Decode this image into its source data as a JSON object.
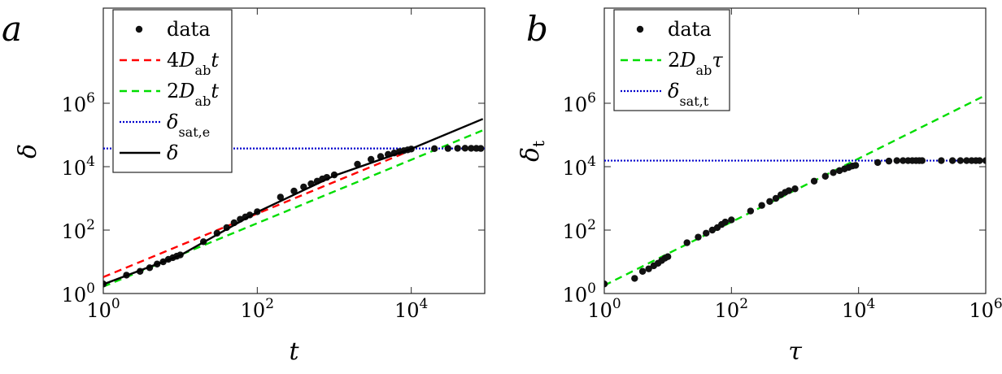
{
  "chart_data": [
    {
      "type": "line",
      "panel_label": "a",
      "title": "",
      "xlabel": "t",
      "ylabel": "δ",
      "xscale": "log",
      "yscale": "log",
      "xlim": [
        1,
        90000
      ],
      "ylim": [
        1,
        1000000000
      ],
      "x_ticks": [
        1,
        100,
        10000
      ],
      "y_ticks": [
        1,
        100,
        10000,
        1000000
      ],
      "x_tick_labels": [
        "10^0",
        "10^2",
        "10^4"
      ],
      "y_tick_labels": [
        "10^0",
        "10^2",
        "10^4",
        "10^6"
      ],
      "legend_location": "top-left",
      "legend": [
        {
          "label": "data",
          "style": "markers",
          "color": "#000000"
        },
        {
          "label": "4D_ab t",
          "style": "dashed",
          "color": "#ff0000"
        },
        {
          "label": "2D_ab t",
          "style": "dashed",
          "color": "#00dd00"
        },
        {
          "label": "δ_sat,e",
          "style": "dotted",
          "color": "#0000cc"
        },
        {
          "label": "δ",
          "style": "solid",
          "color": "#000000"
        }
      ],
      "series": [
        {
          "name": "data",
          "type": "scatter",
          "x": [
            1,
            2,
            3,
            4,
            5,
            6,
            7,
            8,
            9,
            10,
            20,
            30,
            40,
            50,
            60,
            70,
            80,
            100,
            200,
            300,
            400,
            500,
            600,
            700,
            800,
            1000,
            2000,
            3000,
            4000,
            5000,
            6000,
            7000,
            8000,
            9000,
            10000,
            20000,
            30000,
            40000,
            50000,
            60000,
            70000,
            80000
          ],
          "y": [
            2,
            3.8,
            5,
            6.5,
            8.5,
            10,
            12,
            13.5,
            15,
            16.5,
            43,
            80,
            120,
            170,
            220,
            260,
            300,
            380,
            1100,
            1700,
            2300,
            2900,
            3500,
            4100,
            4600,
            5500,
            12000,
            17000,
            21000,
            24500,
            27000,
            30000,
            32000,
            34000,
            36000,
            37000,
            37500,
            38000,
            38200,
            38000,
            37800,
            37500
          ]
        },
        {
          "name": "4D_ab t",
          "type": "line",
          "x": [
            1,
            10000
          ],
          "y": [
            3.3,
            33000
          ]
        },
        {
          "name": "2D_ab t",
          "type": "line",
          "x": [
            1,
            90000
          ],
          "y": [
            1.65,
            148500
          ]
        },
        {
          "name": "δ_sat,e",
          "type": "line",
          "x": [
            1,
            90000
          ],
          "y": [
            37500,
            37500
          ]
        },
        {
          "name": "δ",
          "type": "line",
          "x": [
            1,
            10,
            100,
            1000,
            10000,
            85000
          ],
          "y": [
            1.95,
            16,
            370,
            5200,
            36500,
            320000
          ]
        }
      ]
    },
    {
      "type": "line",
      "panel_label": "b",
      "title": "",
      "xlabel": "τ",
      "ylabel": "δ_t",
      "xscale": "log",
      "yscale": "log",
      "xlim": [
        1,
        1000000
      ],
      "ylim": [
        1,
        1000000000
      ],
      "x_ticks": [
        1,
        100,
        10000,
        1000000
      ],
      "y_ticks": [
        1,
        100,
        10000,
        1000000
      ],
      "x_tick_labels": [
        "10^0",
        "10^2",
        "10^4",
        "10^6"
      ],
      "y_tick_labels": [
        "10^0",
        "10^2",
        "10^4",
        "10^6"
      ],
      "legend_location": "top-left",
      "legend": [
        {
          "label": "data",
          "style": "markers",
          "color": "#000000"
        },
        {
          "label": "2D_ab τ",
          "style": "dashed",
          "color": "#00dd00"
        },
        {
          "label": "δ_sat,t",
          "style": "dotted",
          "color": "#0000cc"
        }
      ],
      "series": [
        {
          "name": "data",
          "type": "scatter",
          "x": [
            1,
            3,
            4,
            5,
            6,
            7,
            8,
            9,
            10,
            20,
            30,
            40,
            50,
            60,
            70,
            80,
            100,
            200,
            300,
            400,
            500,
            600,
            700,
            800,
            1000,
            2000,
            3000,
            4000,
            5000,
            6000,
            7000,
            8000,
            9000,
            20000,
            30000,
            40000,
            50000,
            60000,
            70000,
            80000,
            90000,
            100000,
            200000,
            300000,
            400000,
            500000,
            600000,
            700000,
            800000,
            1000000
          ],
          "y": [
            2,
            3,
            5,
            6,
            7.5,
            9,
            11,
            13,
            14.5,
            40,
            60,
            80,
            100,
            120,
            150,
            180,
            210,
            400,
            600,
            800,
            1000,
            1300,
            1550,
            1750,
            2000,
            3500,
            5000,
            6500,
            7500,
            8500,
            9500,
            10500,
            11000,
            13500,
            15000,
            15500,
            15500,
            15500,
            15500,
            15500,
            15500,
            15500,
            15500,
            15500,
            15500,
            15500,
            15500,
            15500,
            15500,
            15500
          ]
        },
        {
          "name": "2D_ab τ",
          "type": "line",
          "x": [
            1,
            1000000
          ],
          "y": [
            1.8,
            1800000
          ]
        },
        {
          "name": "δ_sat,t",
          "type": "line",
          "x": [
            1,
            1000000
          ],
          "y": [
            15500,
            15500
          ]
        }
      ]
    }
  ]
}
